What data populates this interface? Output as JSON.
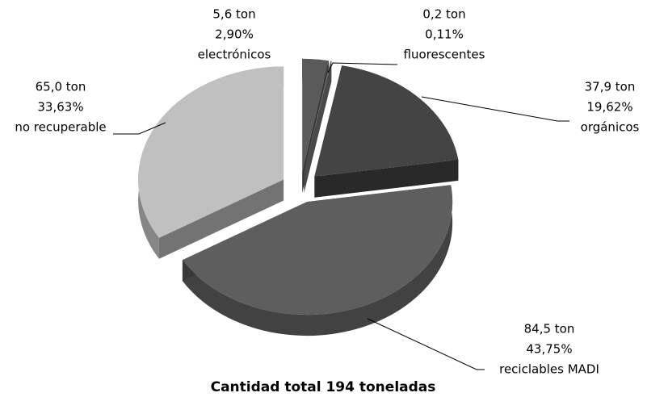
{
  "chart_data": {
    "type": "pie",
    "title": "Cantidad total 194 toneladas",
    "categories": [
      "electrónicos",
      "fluorescentes",
      "orgánicos",
      "reciclables MADI",
      "no recuperable"
    ],
    "amounts": [
      "5,6 ton",
      "0,2 ton",
      "37,9 ton",
      "84,5 ton",
      "65,0 ton"
    ],
    "values": [
      2.9,
      0.11,
      19.62,
      43.75,
      33.63
    ],
    "value_labels": [
      "2,90%",
      "0,11%",
      "19,62%",
      "43,75%",
      "33,63%"
    ],
    "colors": [
      "#5a5a5a",
      "#7a7a7a",
      "#444444",
      "#5e5e5e",
      "#c0c0c0"
    ]
  }
}
